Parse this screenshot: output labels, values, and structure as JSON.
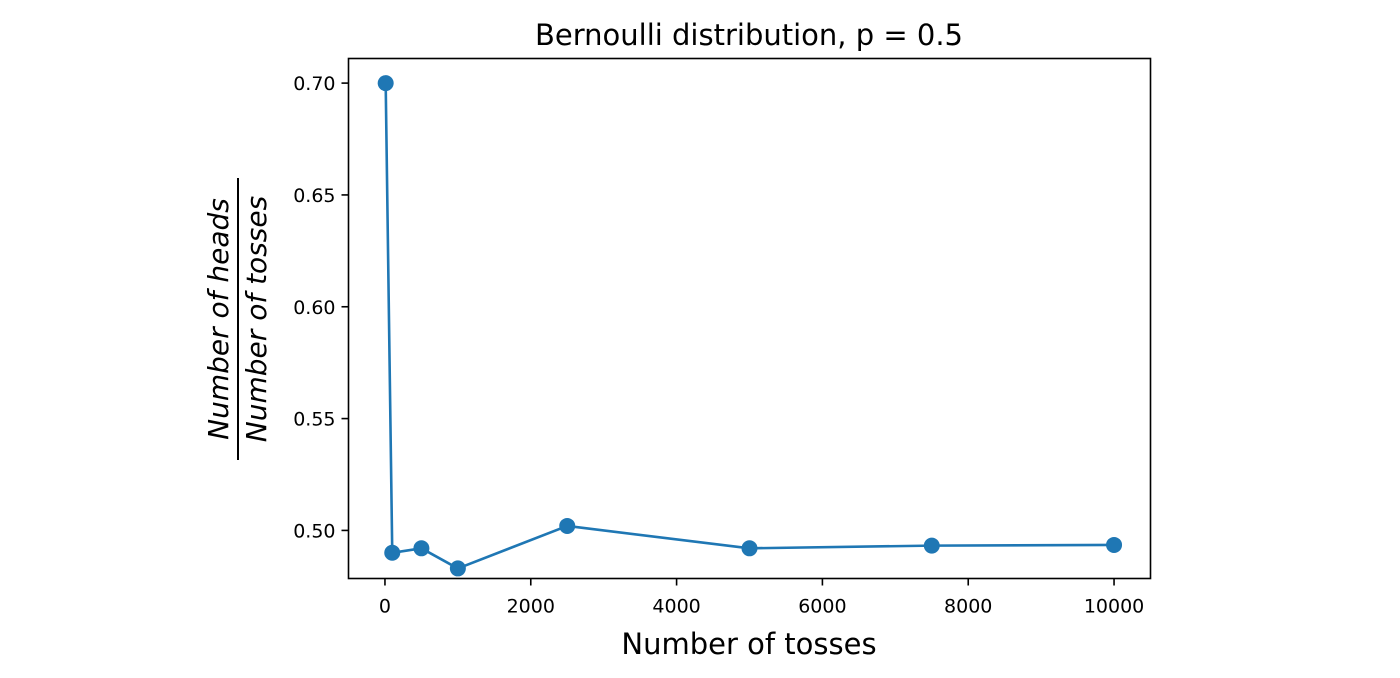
{
  "chart_data": {
    "type": "line",
    "title": "Bernoulli distribution, p = 0.5",
    "xlabel": "Number of tosses",
    "ylabel": {
      "numerator": "Number of heads",
      "denominator": "Number of tosses"
    },
    "xlim": [
      -500,
      10500
    ],
    "ylim": [
      0.4785,
      0.711
    ],
    "x_ticks": [
      0,
      2000,
      4000,
      6000,
      8000,
      10000
    ],
    "x_tick_labels": [
      "0",
      "2000",
      "4000",
      "6000",
      "8000",
      "10000"
    ],
    "y_ticks": [
      0.5,
      0.55,
      0.6,
      0.65,
      0.7
    ],
    "y_tick_labels": [
      "0.50",
      "0.55",
      "0.60",
      "0.65",
      "0.70"
    ],
    "grid": false,
    "legend": "none",
    "series": [
      {
        "color": "#1f77b4",
        "marker": "circle",
        "x": [
          10,
          100,
          500,
          1000,
          2500,
          5000,
          7500,
          10000
        ],
        "y": [
          0.7,
          0.49,
          0.492,
          0.483,
          0.502,
          0.492,
          0.4932,
          0.4935
        ]
      }
    ]
  }
}
